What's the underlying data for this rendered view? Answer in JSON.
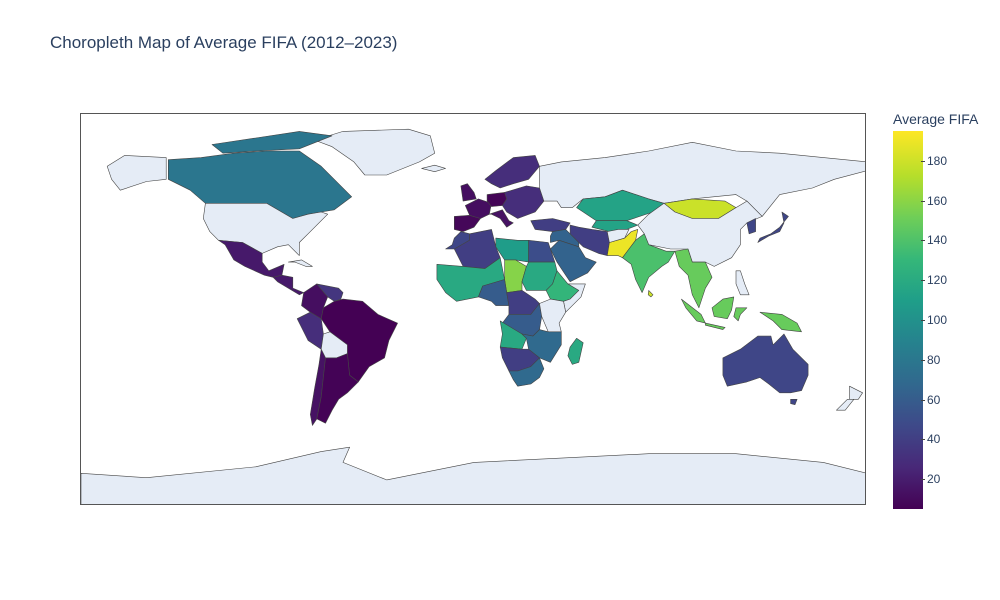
{
  "title": "Choropleth Map of Average FIFA (2012–2023)",
  "colorbar": {
    "title": "Average FIFA",
    "ticks": [
      "20",
      "40",
      "60",
      "80",
      "100",
      "120",
      "140",
      "160",
      "180"
    ],
    "range": [
      5,
      195
    ],
    "colors": [
      "#440154",
      "#482878",
      "#3e4989",
      "#31688e",
      "#26828e",
      "#1f9e89",
      "#35b779",
      "#6ece58",
      "#b5de2b",
      "#fde725"
    ]
  },
  "map": {
    "projection": "equirectangular",
    "land_no_data_color": "#e5ecf6",
    "border_color": "#444444"
  },
  "chart_data": {
    "type": "choropleth",
    "metric": "Average FIFA",
    "regions": [
      {
        "name": "Brazil",
        "value": 5
      },
      {
        "name": "Argentina",
        "value": 6
      },
      {
        "name": "Spain",
        "value": 8
      },
      {
        "name": "Germany",
        "value": 7
      },
      {
        "name": "France",
        "value": 12
      },
      {
        "name": "Mexico",
        "value": 18
      },
      {
        "name": "Peru",
        "value": 30
      },
      {
        "name": "Colombia",
        "value": 12
      },
      {
        "name": "Venezuela",
        "value": 35
      },
      {
        "name": "Chile",
        "value": 14
      },
      {
        "name": "Algeria",
        "value": 40
      },
      {
        "name": "Morocco",
        "value": 45
      },
      {
        "name": "Egypt",
        "value": 50
      },
      {
        "name": "Libya",
        "value": 110
      },
      {
        "name": "Chad",
        "value": 160
      },
      {
        "name": "Sudan",
        "value": 120
      },
      {
        "name": "Ethiopia",
        "value": 130
      },
      {
        "name": "DR Congo",
        "value": 60
      },
      {
        "name": "South Africa",
        "value": 70
      },
      {
        "name": "Madagascar",
        "value": 120
      },
      {
        "name": "Saudi Arabia",
        "value": 65
      },
      {
        "name": "Iran",
        "value": 40
      },
      {
        "name": "Kazakhstan",
        "value": 115
      },
      {
        "name": "Russia",
        "value": null
      },
      {
        "name": "Pakistan",
        "value": 190
      },
      {
        "name": "India",
        "value": 140
      },
      {
        "name": "Mongolia",
        "value": 180
      },
      {
        "name": "China",
        "value": null
      },
      {
        "name": "Japan",
        "value": 45
      },
      {
        "name": "Indonesia",
        "value": 150
      },
      {
        "name": "Australia",
        "value": 45
      },
      {
        "name": "Canada",
        "value": 80
      },
      {
        "name": "United States",
        "value": null
      },
      {
        "name": "Greenland",
        "value": null
      },
      {
        "name": "Antarctica",
        "value": null
      }
    ]
  }
}
